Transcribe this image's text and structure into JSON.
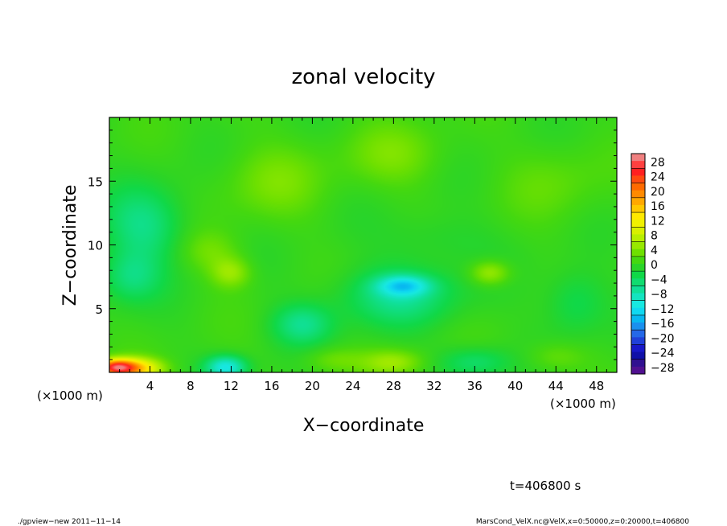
{
  "chart_data": {
    "type": "heatmap",
    "title": "zonal velocity",
    "xlabel": "X−coordinate",
    "ylabel": "Z−coordinate",
    "x_unit": "(×1000 m)",
    "x_unit_right": "(×1000 m)",
    "xlim": [
      0,
      50
    ],
    "ylim": [
      0,
      20
    ],
    "x_ticks": [
      "4",
      "8",
      "12",
      "16",
      "20",
      "24",
      "28",
      "32",
      "36",
      "40",
      "44",
      "48"
    ],
    "x_tick_values": [
      4,
      8,
      12,
      16,
      20,
      24,
      28,
      32,
      36,
      40,
      44,
      48
    ],
    "y_ticks": [
      "5",
      "10",
      "15"
    ],
    "y_tick_values": [
      5,
      10,
      15
    ],
    "colorbar": {
      "labels": [
        "28",
        "24",
        "20",
        "16",
        "12",
        "8",
        "4",
        "0",
        "−4",
        "−8",
        "−12",
        "−16",
        "−20",
        "−24",
        "−28"
      ],
      "levels": [
        30,
        28,
        26,
        24,
        22,
        20,
        18,
        16,
        14,
        12,
        10,
        8,
        6,
        4,
        2,
        0,
        -2,
        -4,
        -6,
        -8,
        -10,
        -12,
        -14,
        -16,
        -18,
        -20,
        -22,
        -24,
        -26,
        -28,
        -30
      ],
      "colors": [
        "#f08080",
        "#ff4040",
        "#ff2020",
        "#ff4a10",
        "#ff6a00",
        "#ff8a00",
        "#ffa800",
        "#ffc800",
        "#ffe800",
        "#f0f000",
        "#d8f000",
        "#b8ee00",
        "#98e800",
        "#6ee000",
        "#44d810",
        "#2ad428",
        "#10d848",
        "#10dc70",
        "#10e098",
        "#14e4c0",
        "#18e8e0",
        "#10d8f0",
        "#08b8f0",
        "#1a90ee",
        "#2468e8",
        "#2040d8",
        "#1818c8",
        "#1010a8",
        "#301090",
        "#501090"
      ]
    },
    "field_blobs": [
      {
        "x": 0.6,
        "z": 0.4,
        "value": 20,
        "rx": 1.8,
        "rz": 0.6
      },
      {
        "x": 2.5,
        "z": 0.3,
        "value": 14,
        "rx": 2.6,
        "rz": 0.8
      },
      {
        "x": 11.5,
        "z": 0.4,
        "value": -11,
        "rx": 2.0,
        "rz": 0.9
      },
      {
        "x": 29.0,
        "z": 6.8,
        "value": -9,
        "rx": 2.6,
        "rz": 0.8
      },
      {
        "x": 28.5,
        "z": 6.0,
        "value": -6,
        "rx": 6.0,
        "rz": 2.3
      },
      {
        "x": 3.5,
        "z": 11.5,
        "value": -6,
        "rx": 4.0,
        "rz": 3.0
      },
      {
        "x": 2.0,
        "z": 7.5,
        "value": -5,
        "rx": 3.0,
        "rz": 2.0
      },
      {
        "x": 19.0,
        "z": 3.8,
        "value": -6,
        "rx": 3.0,
        "rz": 1.6
      },
      {
        "x": 36.0,
        "z": 0.8,
        "value": -5,
        "rx": 3.5,
        "rz": 1.2
      },
      {
        "x": 46.0,
        "z": 5.5,
        "value": -4,
        "rx": 3.0,
        "rz": 2.5
      },
      {
        "x": 10.0,
        "z": 9.5,
        "value": 3,
        "rx": 3.0,
        "rz": 1.6
      },
      {
        "x": 12.0,
        "z": 7.8,
        "value": 5,
        "rx": 2.0,
        "rz": 1.2
      },
      {
        "x": 37.5,
        "z": 7.8,
        "value": 6,
        "rx": 2.0,
        "rz": 1.0
      },
      {
        "x": 28.0,
        "z": 0.8,
        "value": 5,
        "rx": 3.0,
        "rz": 1.0
      },
      {
        "x": 22.0,
        "z": 1.0,
        "value": 3,
        "rx": 3.0,
        "rz": 1.0
      },
      {
        "x": 44.0,
        "z": 1.2,
        "value": 3,
        "rx": 3.0,
        "rz": 1.2
      },
      {
        "x": 16.0,
        "z": 15.0,
        "value": 3,
        "rx": 5.0,
        "rz": 3.0
      },
      {
        "x": 28.0,
        "z": 17.0,
        "value": 3,
        "rx": 5.0,
        "rz": 2.5
      },
      {
        "x": 44.0,
        "z": 15.0,
        "value": 2,
        "rx": 5.0,
        "rz": 3.0
      },
      {
        "x": 32.0,
        "z": 10.5,
        "value": -2,
        "rx": 5.0,
        "rz": 2.0
      }
    ]
  },
  "annotations": {
    "time": "t=406800 s",
    "footer_left": "./gpview−new   2011−11−14",
    "footer_right": "MarsCond_VelX.nc@VelX,x=0:50000,z=0:20000,t=406800"
  }
}
